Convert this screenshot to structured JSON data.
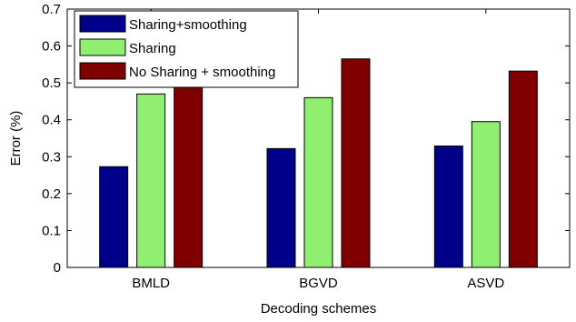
{
  "chart_data": {
    "type": "bar",
    "title": "",
    "xlabel": "Decoding schemes",
    "ylabel": "Error (%)",
    "ylim": [
      0,
      0.7
    ],
    "yticks": [
      "0",
      "0.1",
      "0.2",
      "0.3",
      "0.4",
      "0.5",
      "0.6",
      "0.7"
    ],
    "categories": [
      "BMLD",
      "BGVD",
      "ASVD"
    ],
    "series": [
      {
        "name": "Sharing+smoothing",
        "color": "#00008b",
        "values": [
          0.273,
          0.322,
          0.329
        ]
      },
      {
        "name": "Sharing",
        "color": "#90ee70",
        "values": [
          0.47,
          0.46,
          0.395
        ]
      },
      {
        "name": "No Sharing + smoothing",
        "color": "#800000",
        "values": [
          0.495,
          0.565,
          0.532
        ]
      }
    ],
    "grid": false,
    "legend_position": "top-left"
  }
}
